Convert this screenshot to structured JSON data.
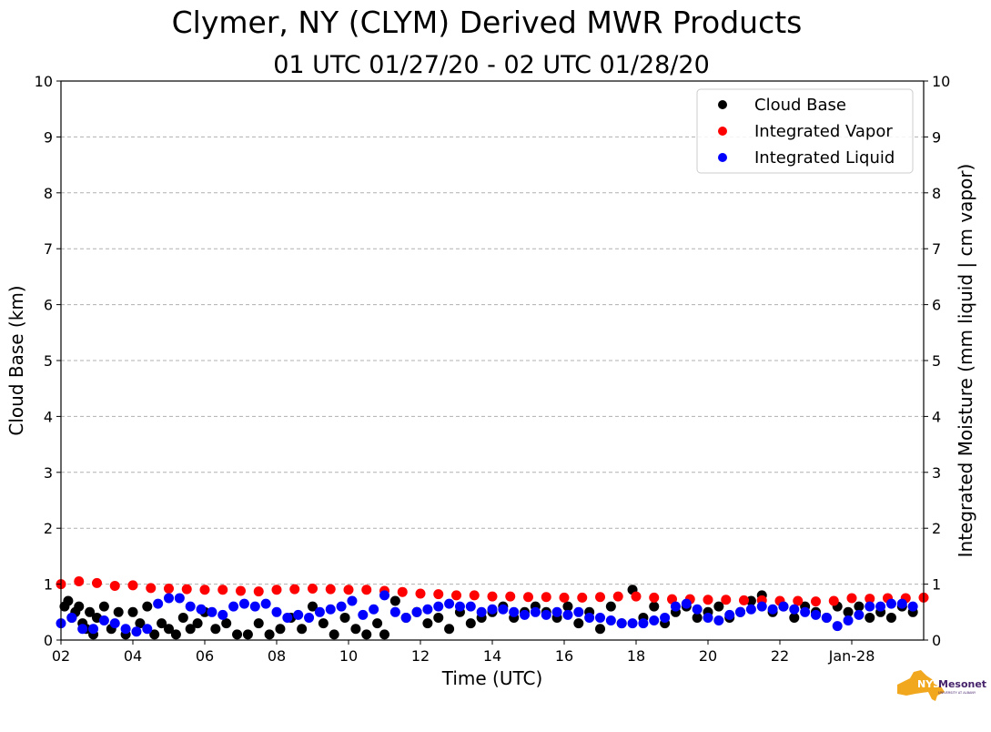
{
  "chart_data": {
    "type": "scatter",
    "title": "Clymer, NY (CLYM) Derived MWR Products",
    "subtitle": "01 UTC 01/27/20 - 02 UTC 01/28/20",
    "xlabel": "Time (UTC)",
    "ylabel": "Cloud Base (km)",
    "ylabel_right": "Integrated Moisture (mm liquid | cm vapor)",
    "xlim": [
      2,
      26
    ],
    "ylim": [
      0,
      10
    ],
    "ylim_right": [
      0,
      10
    ],
    "grid": "horizontal dashed",
    "legend_position": "top-right",
    "x_ticks": [
      {
        "x": 2,
        "label": "02"
      },
      {
        "x": 4,
        "label": "04"
      },
      {
        "x": 6,
        "label": "06"
      },
      {
        "x": 8,
        "label": "08"
      },
      {
        "x": 10,
        "label": "10"
      },
      {
        "x": 12,
        "label": "12"
      },
      {
        "x": 14,
        "label": "14"
      },
      {
        "x": 16,
        "label": "16"
      },
      {
        "x": 18,
        "label": "18"
      },
      {
        "x": 20,
        "label": "20"
      },
      {
        "x": 22,
        "label": "22"
      },
      {
        "x": 24,
        "label": "Jan-28"
      }
    ],
    "y_ticks": [
      "0",
      "1",
      "2",
      "3",
      "4",
      "5",
      "6",
      "7",
      "8",
      "9",
      "10"
    ],
    "series": [
      {
        "name": "Cloud Base",
        "color": "#000000",
        "x": [
          2.1,
          2.2,
          2.3,
          2.4,
          2.5,
          2.6,
          2.7,
          2.8,
          2.9,
          3.0,
          3.2,
          3.4,
          3.6,
          3.8,
          4.0,
          4.2,
          4.4,
          4.6,
          4.8,
          5.0,
          5.2,
          5.4,
          5.6,
          5.8,
          6.0,
          6.3,
          6.6,
          6.9,
          7.2,
          7.5,
          7.8,
          8.1,
          8.4,
          8.7,
          9.0,
          9.3,
          9.6,
          9.9,
          10.2,
          10.5,
          10.8,
          11.0,
          11.3,
          11.6,
          11.9,
          12.2,
          12.5,
          12.8,
          13.1,
          13.4,
          13.7,
          14.0,
          14.3,
          14.6,
          14.9,
          15.2,
          15.5,
          15.8,
          16.1,
          16.4,
          16.7,
          17.0,
          17.3,
          17.6,
          17.9,
          18.2,
          18.5,
          18.8,
          19.1,
          19.4,
          19.7,
          20.0,
          20.3,
          20.6,
          20.9,
          21.2,
          21.5,
          21.8,
          22.1,
          22.4,
          22.7,
          23.0,
          23.3,
          23.6,
          23.9,
          24.2,
          24.5,
          24.8,
          25.1,
          25.4,
          25.7
        ],
        "y": [
          0.6,
          0.7,
          0.4,
          0.5,
          0.6,
          0.3,
          0.2,
          0.5,
          0.1,
          0.4,
          0.6,
          0.2,
          0.5,
          0.1,
          0.5,
          0.3,
          0.6,
          0.1,
          0.3,
          0.2,
          0.1,
          0.4,
          0.2,
          0.3,
          0.5,
          0.2,
          0.3,
          0.1,
          0.1,
          0.3,
          0.1,
          0.2,
          0.4,
          0.2,
          0.6,
          0.3,
          0.1,
          0.4,
          0.2,
          0.1,
          0.3,
          0.1,
          0.7,
          0.4,
          0.5,
          0.3,
          0.4,
          0.2,
          0.5,
          0.3,
          0.4,
          0.5,
          0.6,
          0.4,
          0.5,
          0.6,
          0.5,
          0.4,
          0.6,
          0.3,
          0.5,
          0.2,
          0.6,
          0.3,
          0.9,
          0.4,
          0.6,
          0.3,
          0.5,
          0.6,
          0.4,
          0.5,
          0.6,
          0.4,
          0.5,
          0.7,
          0.8,
          0.5,
          0.6,
          0.4,
          0.6,
          0.5,
          0.4,
          0.6,
          0.5,
          0.6,
          0.4,
          0.5,
          0.4,
          0.6,
          0.5
        ]
      },
      {
        "name": "Integrated Vapor",
        "color": "#ff0000",
        "x": [
          2.0,
          2.5,
          3.0,
          3.5,
          4.0,
          4.5,
          5.0,
          5.5,
          6.0,
          6.5,
          7.0,
          7.5,
          8.0,
          8.5,
          9.0,
          9.5,
          10.0,
          10.5,
          11.0,
          11.5,
          12.0,
          12.5,
          13.0,
          13.5,
          14.0,
          14.5,
          15.0,
          15.5,
          16.0,
          16.5,
          17.0,
          17.5,
          18.0,
          18.5,
          19.0,
          19.5,
          20.0,
          20.5,
          21.0,
          21.5,
          22.0,
          22.5,
          23.0,
          23.5,
          24.0,
          24.5,
          25.0,
          25.5,
          26.0
        ],
        "y": [
          1.0,
          1.05,
          1.02,
          0.97,
          0.98,
          0.93,
          0.92,
          0.91,
          0.9,
          0.9,
          0.88,
          0.87,
          0.9,
          0.91,
          0.92,
          0.91,
          0.9,
          0.9,
          0.88,
          0.86,
          0.83,
          0.82,
          0.8,
          0.8,
          0.78,
          0.78,
          0.77,
          0.77,
          0.76,
          0.76,
          0.77,
          0.78,
          0.78,
          0.76,
          0.73,
          0.73,
          0.72,
          0.72,
          0.71,
          0.71,
          0.7,
          0.7,
          0.69,
          0.7,
          0.75,
          0.74,
          0.75,
          0.75,
          0.76
        ]
      },
      {
        "name": "Integrated Liquid",
        "color": "#0000ff",
        "x": [
          2.0,
          2.3,
          2.6,
          2.9,
          3.2,
          3.5,
          3.8,
          4.1,
          4.4,
          4.7,
          5.0,
          5.3,
          5.6,
          5.9,
          6.2,
          6.5,
          6.8,
          7.1,
          7.4,
          7.7,
          8.0,
          8.3,
          8.6,
          8.9,
          9.2,
          9.5,
          9.8,
          10.1,
          10.4,
          10.7,
          11.0,
          11.3,
          11.6,
          11.9,
          12.2,
          12.5,
          12.8,
          13.1,
          13.4,
          13.7,
          14.0,
          14.3,
          14.6,
          14.9,
          15.2,
          15.5,
          15.8,
          16.1,
          16.4,
          16.7,
          17.0,
          17.3,
          17.6,
          17.9,
          18.2,
          18.5,
          18.8,
          19.1,
          19.4,
          19.7,
          20.0,
          20.3,
          20.6,
          20.9,
          21.2,
          21.5,
          21.8,
          22.1,
          22.4,
          22.7,
          23.0,
          23.3,
          23.6,
          23.9,
          24.2,
          24.5,
          24.8,
          25.1,
          25.4,
          25.7
        ],
        "y": [
          0.3,
          0.4,
          0.2,
          0.2,
          0.35,
          0.3,
          0.2,
          0.15,
          0.2,
          0.65,
          0.75,
          0.75,
          0.6,
          0.55,
          0.5,
          0.45,
          0.6,
          0.65,
          0.6,
          0.65,
          0.5,
          0.4,
          0.45,
          0.4,
          0.5,
          0.55,
          0.6,
          0.7,
          0.45,
          0.55,
          0.8,
          0.5,
          0.4,
          0.5,
          0.55,
          0.6,
          0.65,
          0.6,
          0.6,
          0.5,
          0.55,
          0.55,
          0.5,
          0.45,
          0.5,
          0.45,
          0.5,
          0.45,
          0.5,
          0.4,
          0.4,
          0.35,
          0.3,
          0.3,
          0.3,
          0.35,
          0.4,
          0.6,
          0.65,
          0.55,
          0.4,
          0.35,
          0.45,
          0.5,
          0.55,
          0.6,
          0.55,
          0.6,
          0.55,
          0.5,
          0.45,
          0.4,
          0.25,
          0.35,
          0.45,
          0.6,
          0.6,
          0.65,
          0.65,
          0.6
        ]
      }
    ]
  },
  "logo": {
    "text": "Mesonet",
    "initials": "NYS",
    "sub": "UNIVERSITY AT ALBANY",
    "state_color": "#f1a81f",
    "text_color": "#46236a"
  }
}
